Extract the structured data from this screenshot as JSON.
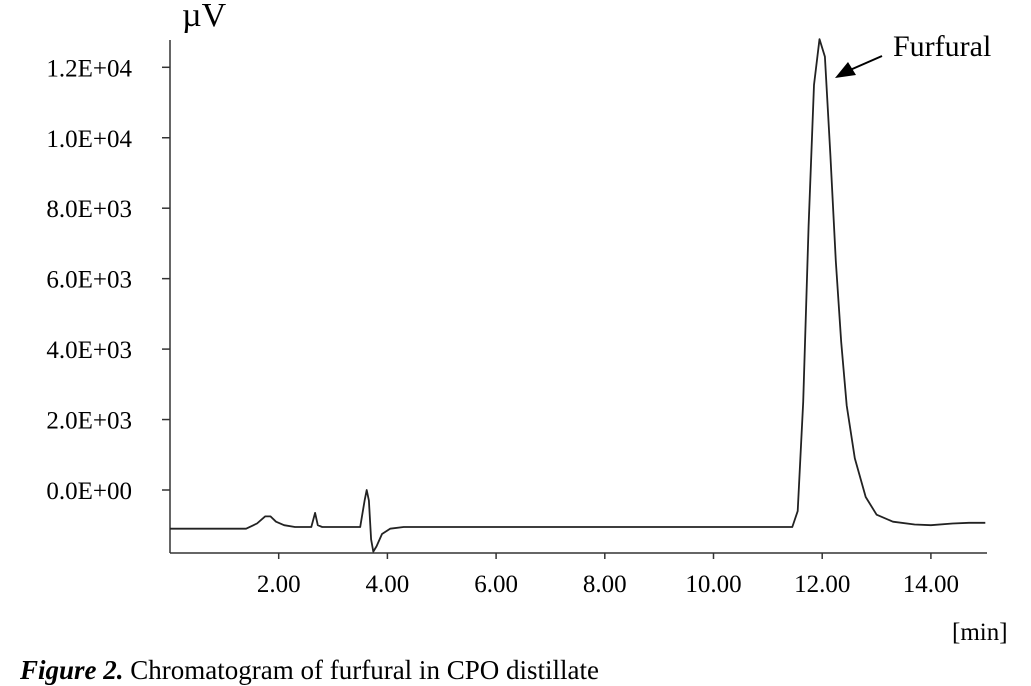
{
  "chart_data": {
    "type": "line",
    "title": "",
    "xlabel": "[min]",
    "ylabel": "µV",
    "xlim": [
      0,
      15
    ],
    "ylim": [
      -1800,
      13500
    ],
    "grid": false,
    "legend": null,
    "x_ticks": [
      2,
      4,
      6,
      8,
      10,
      12,
      14
    ],
    "x_tick_labels": [
      "2.00",
      "4.00",
      "6.00",
      "8.00",
      "10.00",
      "12.00",
      "14.00"
    ],
    "y_ticks": [
      0,
      2000,
      4000,
      6000,
      8000,
      10000,
      12000
    ],
    "y_tick_labels": [
      "0.0E+00",
      "2.0E+03",
      "4.0E+03",
      "6.0E+03",
      "8.0E+03",
      "1.0E+04",
      "1.2E+04"
    ],
    "annotations": [
      {
        "text": "Furfural",
        "x": 11.95,
        "y": 12800,
        "arrow": true
      }
    ],
    "series": [
      {
        "name": "Chromatogram",
        "x": [
          0.0,
          1.4,
          1.6,
          1.75,
          1.85,
          1.95,
          2.1,
          2.3,
          2.6,
          2.67,
          2.72,
          2.8,
          3.0,
          3.5,
          3.58,
          3.62,
          3.66,
          3.7,
          3.74,
          3.8,
          3.9,
          4.05,
          4.3,
          5.0,
          8.0,
          11.0,
          11.45,
          11.55,
          11.65,
          11.75,
          11.85,
          11.95,
          12.05,
          12.15,
          12.25,
          12.35,
          12.45,
          12.6,
          12.8,
          13.0,
          13.3,
          13.7,
          14.0,
          14.4,
          14.7,
          15.0
        ],
        "y": [
          -1100,
          -1100,
          -950,
          -750,
          -750,
          -900,
          -1000,
          -1050,
          -1050,
          -650,
          -1000,
          -1050,
          -1050,
          -1050,
          -300,
          0,
          -300,
          -1400,
          -1750,
          -1600,
          -1250,
          -1100,
          -1050,
          -1050,
          -1050,
          -1050,
          -1050,
          -600,
          2500,
          7500,
          11500,
          12800,
          12300,
          9500,
          6500,
          4200,
          2400,
          900,
          -200,
          -700,
          -900,
          -980,
          -1000,
          -950,
          -930,
          -930
        ]
      }
    ]
  },
  "caption": {
    "label": "Figure 2.",
    "text": " Chromatogram of furfural in CPO distillate"
  }
}
